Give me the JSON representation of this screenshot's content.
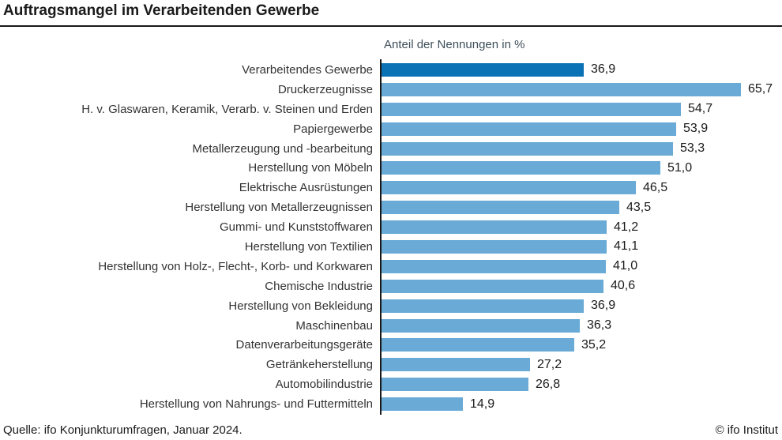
{
  "title": "Auftragsmangel im Verarbeitenden Gewerbe",
  "subtitle": "Anteil der Nennungen in %",
  "footer": {
    "source": "Quelle: ifo Konjunkturumfragen, Januar 2024.",
    "copyright": "© ifo Institut"
  },
  "colors": {
    "highlight_bar": "#0b72b6",
    "bar": "#69aad6",
    "axis": "#1a1a1a",
    "title_text": "#1a1a1a",
    "subtitle_text": "#3e4e59",
    "category_text": "#333333",
    "value_text": "#1a1a1a"
  },
  "chart_data": {
    "type": "bar",
    "orientation": "horizontal",
    "title": "Auftragsmangel im Verarbeitenden Gewerbe",
    "xlabel": "Anteil der Nennungen in %",
    "ylabel": "",
    "xlim": [
      0,
      70
    ],
    "grid": false,
    "legend": false,
    "value_format": "decimal-comma",
    "highlighted_index": 0,
    "categories": [
      "Verarbeitendes Gewerbe",
      "Druckerzeugnisse",
      "H. v. Glaswaren, Keramik, Verarb. v. Steinen und Erden",
      "Papiergewerbe",
      "Metallerzeugung und -bearbeitung",
      "Herstellung von Möbeln",
      "Elektrische Ausrüstungen",
      "Herstellung von Metallerzeugnissen",
      "Gummi- und Kunststoffwaren",
      "Herstellung von Textilien",
      "Herstellung von Holz-, Flecht-, Korb- und Korkwaren",
      "Chemische Industrie",
      "Herstellung von Bekleidung",
      "Maschinenbau",
      "Datenverarbeitungsgeräte",
      "Getränkeherstellung",
      "Automobilindustrie",
      "Herstellung von Nahrungs- und Futtermitteln"
    ],
    "values": [
      36.9,
      65.7,
      54.7,
      53.9,
      53.3,
      51.0,
      46.5,
      43.5,
      41.2,
      41.1,
      41.0,
      40.6,
      36.9,
      36.3,
      35.2,
      27.2,
      26.8,
      14.9
    ],
    "value_labels": [
      "36,9",
      "65,7",
      "54,7",
      "53,9",
      "53,3",
      "51,0",
      "46,5",
      "43,5",
      "41,2",
      "41,1",
      "41,0",
      "40,6",
      "36,9",
      "36,3",
      "35,2",
      "27,2",
      "26,8",
      "14,9"
    ]
  }
}
